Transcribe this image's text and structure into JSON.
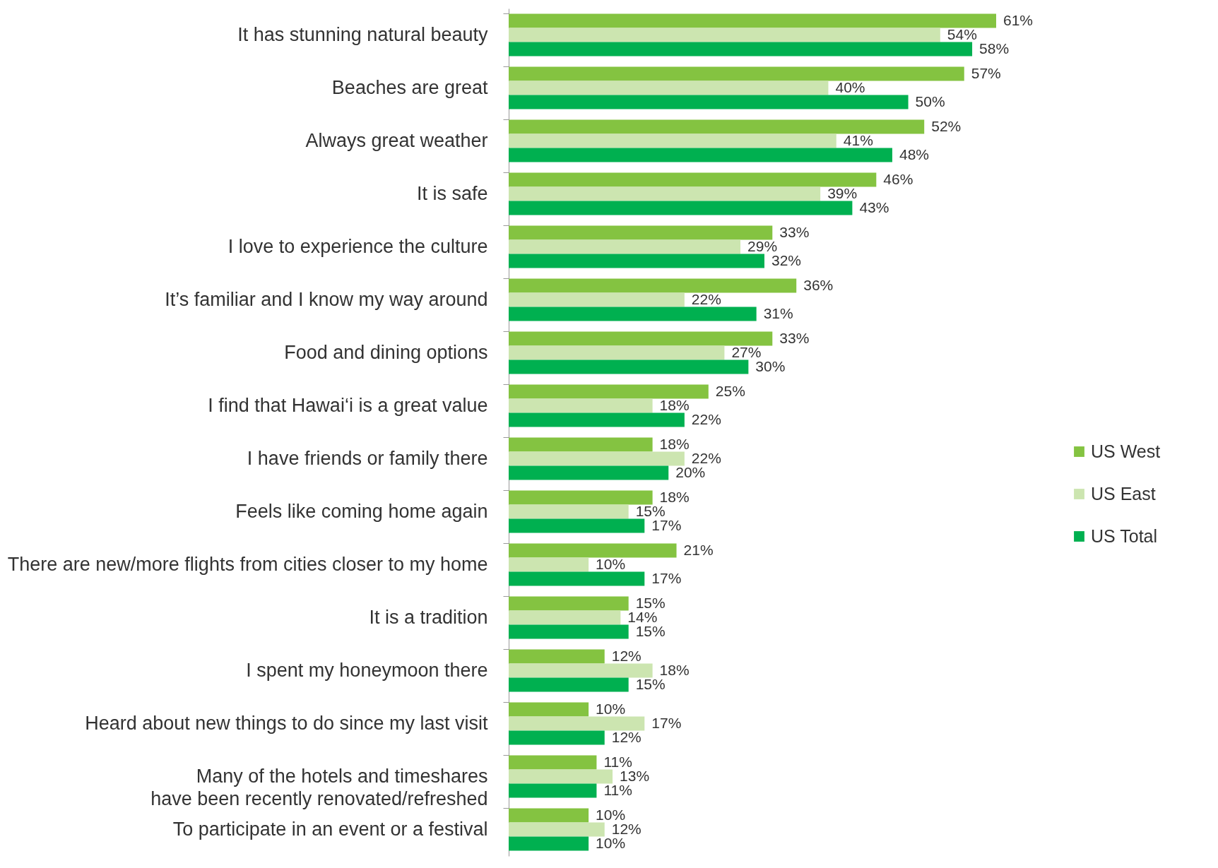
{
  "chart_data": {
    "type": "bar",
    "orientation": "horizontal",
    "legend": "right",
    "categories": [
      "It has stunning natural beauty",
      "Beaches are great",
      "Always great weather",
      "It is safe",
      "I love to experience the culture",
      "It’s familiar and I know my way around",
      "Food and dining options",
      "I find that Hawai‘i is a great value",
      "I have friends or family there",
      "Feels like coming home again",
      "There are new/more flights from cities closer to my home",
      "It is a tradition",
      "I spent my honeymoon there",
      "Heard about new things to do since my last visit",
      "Many of the hotels and timeshares have been recently renovated/refreshed",
      "To participate in an event or a festival"
    ],
    "series": [
      {
        "name": "US West",
        "color": "#84c341",
        "values": [
          61,
          57,
          52,
          46,
          33,
          36,
          33,
          25,
          18,
          18,
          21,
          15,
          12,
          10,
          11,
          10
        ],
        "value_labels": [
          "61%",
          "57%",
          "52%",
          "46%",
          "33%",
          "36%",
          "33%",
          "25%",
          "18%",
          "18%",
          "21%",
          "15%",
          "12%",
          "10%",
          "11%",
          "10%"
        ]
      },
      {
        "name": "US East",
        "color": "#cce5b0",
        "values": [
          54,
          40,
          41,
          39,
          29,
          22,
          27,
          18,
          22,
          15,
          10,
          14,
          18,
          17,
          13,
          12
        ],
        "value_labels": [
          "54%",
          "40%",
          "41%",
          "39%",
          "29%",
          "22%",
          "27%",
          "18%",
          "22%",
          "15%",
          "10%",
          "14%",
          "18%",
          "17%",
          "13%",
          "12%"
        ]
      },
      {
        "name": "US Total",
        "color": "#00b050",
        "values": [
          58,
          50,
          48,
          43,
          32,
          31,
          30,
          22,
          20,
          17,
          17,
          15,
          15,
          12,
          11,
          10
        ],
        "value_labels": [
          "58%",
          "50%",
          "48%",
          "43%",
          "32%",
          "31%",
          "30%",
          "22%",
          "20%",
          "17%",
          "17%",
          "15%",
          "15%",
          "12%",
          "11%",
          "10%"
        ]
      }
    ]
  }
}
